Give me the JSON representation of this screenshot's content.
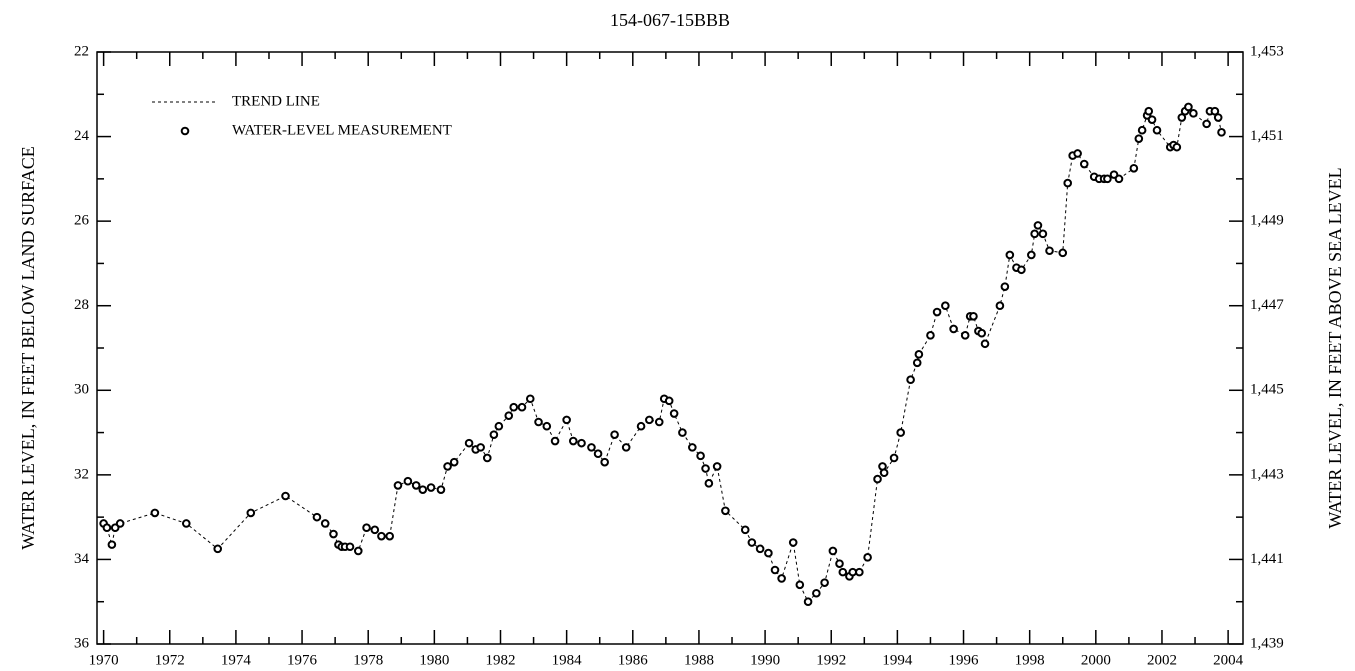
{
  "chart_data": {
    "type": "scatter",
    "title": "154-067-15BBB",
    "y_label": "WATER LEVEL, IN FEET BELOW LAND SURFACE",
    "y2_label": "WATER LEVEL, IN FEET ABOVE SEA LEVEL",
    "trend_line_label": "TREND LINE",
    "legend": "upper left",
    "y_inverted": true,
    "xlim": [
      1969.8,
      2004.45
    ],
    "xticks": [
      1970,
      1972,
      1974,
      1976,
      1978,
      1980,
      1982,
      1984,
      1986,
      1988,
      1990,
      1992,
      1994,
      1996,
      1998,
      2000,
      2002,
      2004
    ],
    "ylim": [
      22,
      36
    ],
    "yticks": [
      22,
      24,
      26,
      28,
      30,
      32,
      34,
      36
    ],
    "y2lim": [
      1439,
      1453
    ],
    "y2ticks": [
      {
        "value": 1439,
        "label": "1,439"
      },
      {
        "value": 1441,
        "label": "1,441"
      },
      {
        "value": 1443,
        "label": "1,443"
      },
      {
        "value": 1445,
        "label": "1,445"
      },
      {
        "value": 1447,
        "label": "1,447"
      },
      {
        "value": 1449,
        "label": "1,449"
      },
      {
        "value": 1451,
        "label": "1,451"
      },
      {
        "value": 1453,
        "label": "1,453"
      }
    ],
    "x": [
      1970.0,
      1970.1,
      1970.25,
      1970.35,
      1970.5,
      1971.55,
      1972.5,
      1973.45,
      1974.45,
      1975.5,
      1976.45,
      1976.7,
      1976.95,
      1977.1,
      1977.2,
      1977.3,
      1977.45,
      1977.7,
      1977.95,
      1978.2,
      1978.4,
      1978.65,
      1978.9,
      1979.2,
      1979.45,
      1979.65,
      1979.9,
      1980.2,
      1980.4,
      1980.6,
      1981.05,
      1981.25,
      1981.4,
      1981.6,
      1981.8,
      1981.95,
      1982.25,
      1982.4,
      1982.65,
      1982.9,
      1983.15,
      1983.4,
      1983.65,
      1984.0,
      1984.2,
      1984.45,
      1984.75,
      1984.95,
      1985.15,
      1985.45,
      1985.8,
      1986.25,
      1986.5,
      1986.8,
      1986.95,
      1987.1,
      1987.25,
      1987.5,
      1987.8,
      1988.05,
      1988.2,
      1988.3,
      1988.55,
      1988.8,
      1989.4,
      1989.6,
      1989.85,
      1990.1,
      1990.3,
      1990.5,
      1990.85,
      1991.05,
      1991.3,
      1991.55,
      1991.8,
      1992.05,
      1992.25,
      1992.35,
      1992.55,
      1992.65,
      1992.85,
      1993.1,
      1993.4,
      1993.55,
      1993.6,
      1993.9,
      1994.1,
      1994.4,
      1994.6,
      1994.65,
      1995.0,
      1995.2,
      1995.45,
      1995.7,
      1996.05,
      1996.2,
      1996.3,
      1996.45,
      1996.55,
      1996.65,
      1997.1,
      1997.25,
      1997.4,
      1997.6,
      1997.75,
      1998.05,
      1998.15,
      1998.25,
      1998.4,
      1998.6,
      1999.0,
      1999.15,
      1999.3,
      1999.45,
      1999.65,
      1999.95,
      2000.1,
      2000.25,
      2000.35,
      2000.55,
      2000.7,
      2001.15,
      2001.3,
      2001.4,
      2001.55,
      2001.6,
      2001.7,
      2001.85,
      2002.25,
      2002.35,
      2002.45,
      2002.6,
      2002.7,
      2002.8,
      2002.95,
      2003.35,
      2003.45,
      2003.6,
      2003.7,
      2003.8
    ],
    "series": [
      {
        "name": "WATER-LEVEL MEASUREMENT",
        "color": "#000000",
        "values": [
          33.15,
          33.25,
          33.65,
          33.25,
          33.15,
          32.9,
          33.15,
          33.75,
          32.9,
          32.5,
          33.0,
          33.15,
          33.4,
          33.65,
          33.7,
          33.7,
          33.7,
          33.8,
          33.25,
          33.3,
          33.45,
          33.45,
          32.25,
          32.15,
          32.25,
          32.35,
          32.3,
          32.35,
          31.8,
          31.7,
          31.25,
          31.4,
          31.35,
          31.6,
          31.05,
          30.85,
          30.6,
          30.4,
          30.4,
          30.2,
          30.75,
          30.85,
          31.2,
          30.7,
          31.2,
          31.25,
          31.35,
          31.5,
          31.7,
          31.05,
          31.35,
          30.85,
          30.7,
          30.75,
          30.2,
          30.25,
          30.55,
          31.0,
          31.35,
          31.55,
          31.85,
          32.2,
          31.8,
          32.85,
          33.3,
          33.6,
          33.75,
          33.85,
          34.25,
          34.45,
          33.6,
          34.6,
          35.0,
          34.8,
          34.55,
          33.8,
          34.1,
          34.3,
          34.4,
          34.3,
          34.3,
          33.95,
          32.1,
          31.8,
          31.95,
          31.6,
          31.0,
          29.75,
          29.35,
          29.15,
          28.7,
          28.15,
          28.0,
          28.55,
          28.7,
          28.25,
          28.25,
          28.6,
          28.65,
          28.9,
          28.0,
          27.55,
          26.8,
          27.1,
          27.15,
          26.8,
          26.3,
          26.1,
          26.3,
          26.7,
          26.75,
          25.1,
          24.45,
          24.4,
          24.65,
          24.95,
          25.0,
          25.0,
          25.0,
          24.9,
          25.0,
          24.75,
          24.05,
          23.85,
          23.5,
          23.4,
          23.6,
          23.85,
          24.25,
          24.2,
          24.25,
          23.55,
          23.4,
          23.3,
          23.45,
          23.7,
          23.4,
          23.4,
          23.55,
          23.9
        ]
      }
    ]
  }
}
